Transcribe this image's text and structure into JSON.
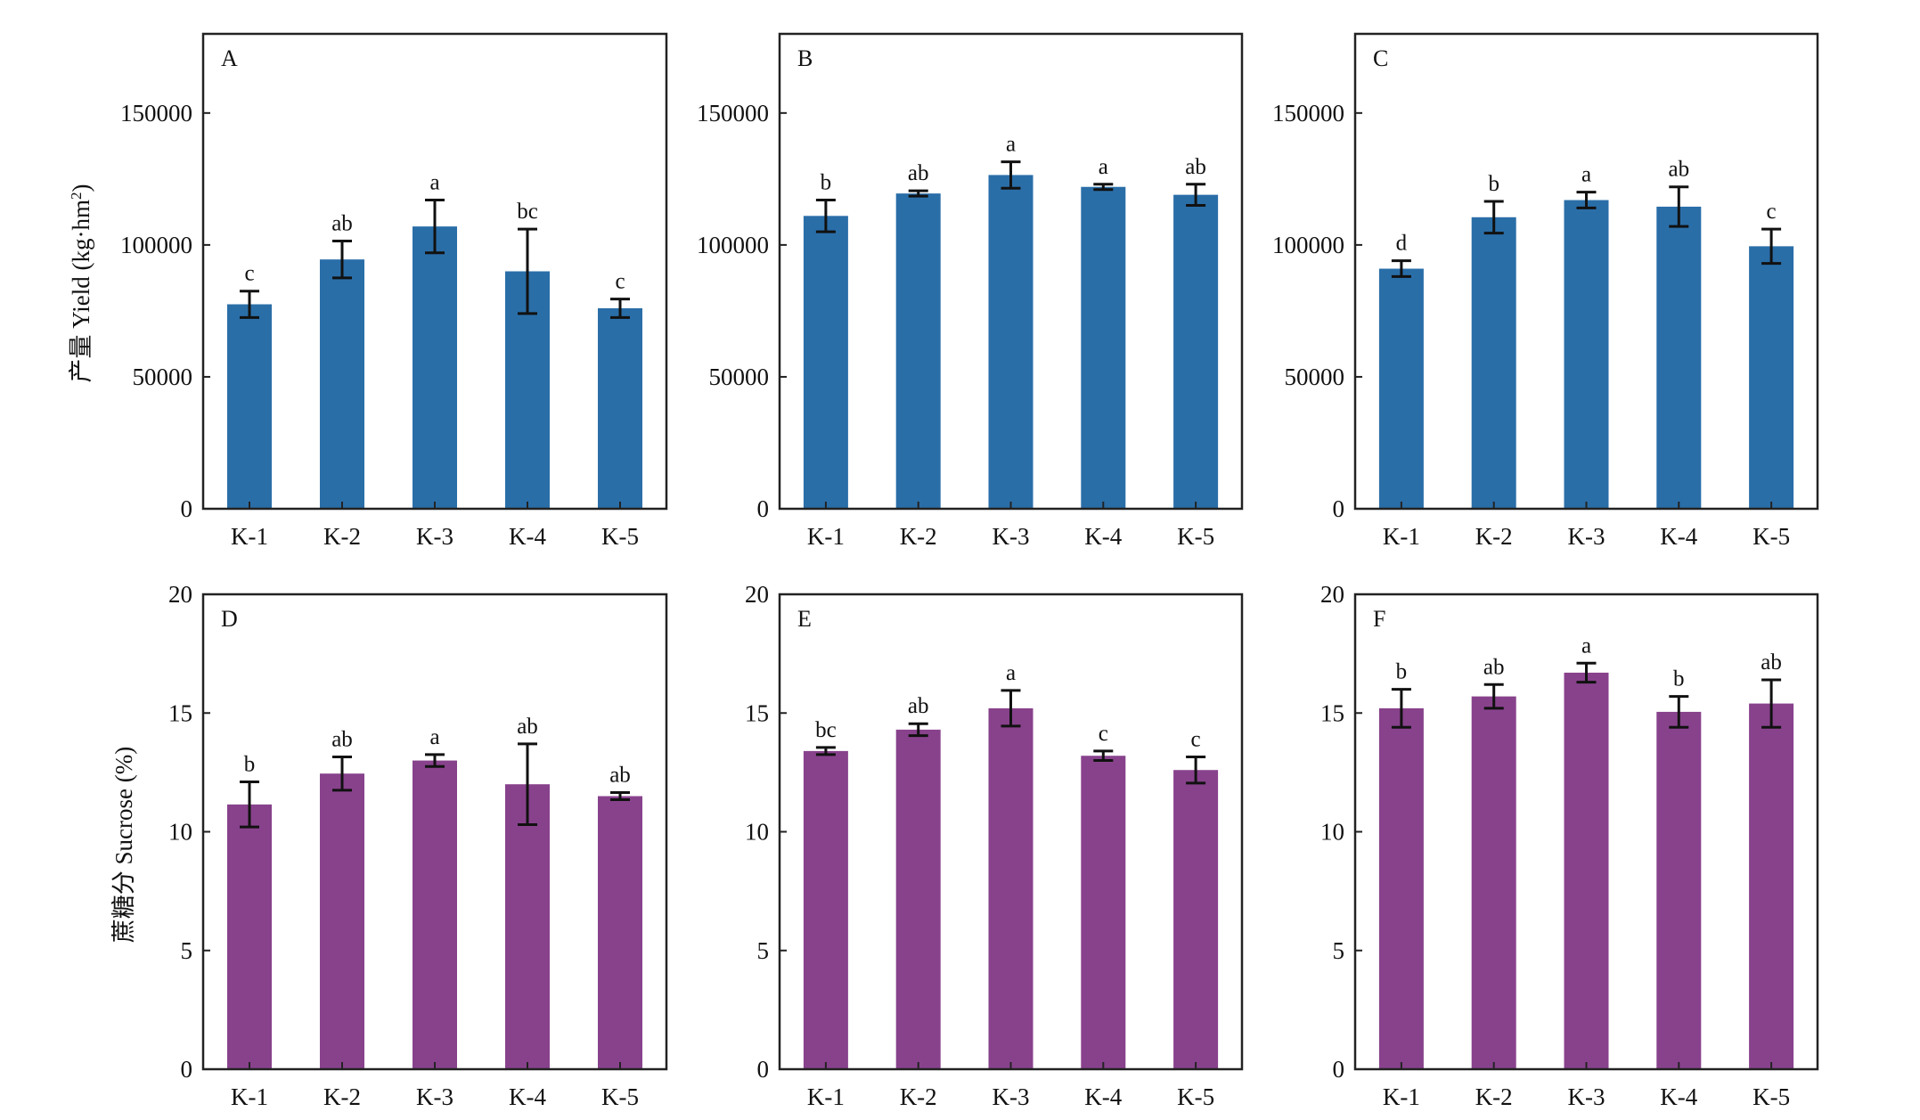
{
  "colors": {
    "yield_bar": "#2a6ea8",
    "sucrose_bar": "#88428c",
    "axis": "#222222"
  },
  "y_titles": {
    "yield": {
      "prefix": "产量 Yield (kg·hm",
      "sup": "2",
      "suffix": ")"
    },
    "sucrose": "蔗糖分 Sucrose (%)"
  },
  "chart_data": [
    {
      "type": "bar",
      "panel": "A",
      "group": "yield",
      "categories": [
        "K-1",
        "K-2",
        "K-3",
        "K-4",
        "K-5"
      ],
      "values": [
        77500,
        94500,
        107000,
        90000,
        76000
      ],
      "errors": [
        5000,
        7000,
        10000,
        16000,
        3500
      ],
      "sig": [
        "c",
        "ab",
        "a",
        "bc",
        "c"
      ],
      "ylim": [
        0,
        180000
      ],
      "yticks": [
        0,
        50000,
        100000,
        150000
      ]
    },
    {
      "type": "bar",
      "panel": "B",
      "group": "yield",
      "categories": [
        "K-1",
        "K-2",
        "K-3",
        "K-4",
        "K-5"
      ],
      "values": [
        111000,
        119500,
        126500,
        122000,
        119000
      ],
      "errors": [
        6000,
        1000,
        5000,
        1000,
        4000
      ],
      "sig": [
        "b",
        "ab",
        "a",
        "a",
        "ab"
      ],
      "ylim": [
        0,
        180000
      ],
      "yticks": [
        0,
        50000,
        100000,
        150000
      ]
    },
    {
      "type": "bar",
      "panel": "C",
      "group": "yield",
      "categories": [
        "K-1",
        "K-2",
        "K-3",
        "K-4",
        "K-5"
      ],
      "values": [
        91000,
        110500,
        117000,
        114500,
        99500
      ],
      "errors": [
        3000,
        6000,
        3000,
        7500,
        6500
      ],
      "sig": [
        "d",
        "b",
        "a",
        "ab",
        "c"
      ],
      "ylim": [
        0,
        180000
      ],
      "yticks": [
        0,
        50000,
        100000,
        150000
      ]
    },
    {
      "type": "bar",
      "panel": "D",
      "group": "sucrose",
      "categories": [
        "K-1",
        "K-2",
        "K-3",
        "K-4",
        "K-5"
      ],
      "values": [
        11.15,
        12.45,
        13.0,
        12.0,
        11.5
      ],
      "errors": [
        0.95,
        0.7,
        0.25,
        1.7,
        0.15
      ],
      "sig": [
        "b",
        "ab",
        "a",
        "ab",
        "ab"
      ],
      "ylim": [
        0,
        20
      ],
      "yticks": [
        0,
        5,
        10,
        15,
        20
      ]
    },
    {
      "type": "bar",
      "panel": "E",
      "group": "sucrose",
      "categories": [
        "K-1",
        "K-2",
        "K-3",
        "K-4",
        "K-5"
      ],
      "values": [
        13.4,
        14.3,
        15.2,
        13.2,
        12.6
      ],
      "errors": [
        0.15,
        0.25,
        0.75,
        0.2,
        0.55
      ],
      "sig": [
        "bc",
        "ab",
        "a",
        "c",
        "c"
      ],
      "ylim": [
        0,
        20
      ],
      "yticks": [
        0,
        5,
        10,
        15,
        20
      ]
    },
    {
      "type": "bar",
      "panel": "F",
      "group": "sucrose",
      "categories": [
        "K-1",
        "K-2",
        "K-3",
        "K-4",
        "K-5"
      ],
      "values": [
        15.2,
        15.7,
        16.7,
        15.05,
        15.4
      ],
      "errors": [
        0.8,
        0.5,
        0.4,
        0.65,
        1.0
      ],
      "sig": [
        "b",
        "ab",
        "a",
        "b",
        "ab"
      ],
      "ylim": [
        0,
        20
      ],
      "yticks": [
        0,
        5,
        10,
        15,
        20
      ]
    }
  ]
}
